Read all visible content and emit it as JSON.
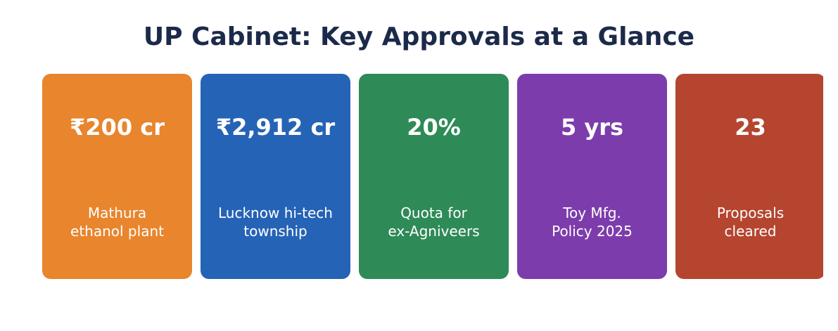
{
  "header": {
    "title": "UP Cabinet: Key Approvals at a Glance"
  },
  "cards": [
    {
      "value": "₹200 cr",
      "label": "Mathura\nethanol plant",
      "color": "#e8852d"
    },
    {
      "value": "₹2,912 cr",
      "label": "Lucknow hi-tech\ntownship",
      "color": "#2563b6"
    },
    {
      "value": "20%",
      "label": "Quota for\nex-Agniveers",
      "color": "#2e8a57"
    },
    {
      "value": "5 yrs",
      "label": "Toy Mfg.\nPolicy 2025",
      "color": "#7d3cab"
    },
    {
      "value": "23",
      "label": "Proposals\ncleared",
      "color": "#b5452f"
    }
  ]
}
